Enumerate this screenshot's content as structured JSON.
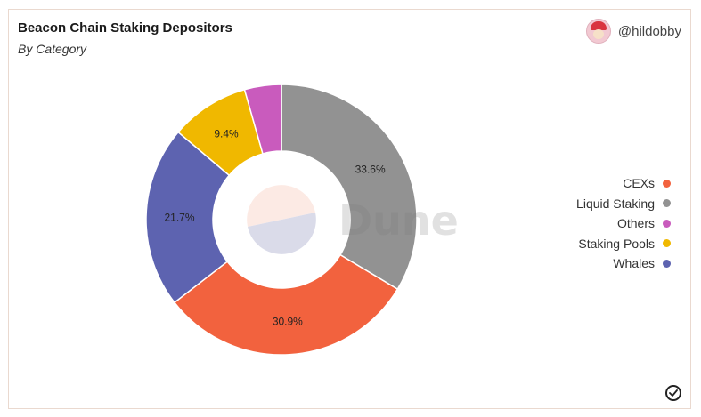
{
  "header": {
    "title": "Beacon Chain Staking Depositors",
    "subtitle": "By Category",
    "author": "@hildobby"
  },
  "watermark": {
    "text": "Dune"
  },
  "colors": {
    "CEXs": "#f2623e",
    "Liquid Staking": "#929292",
    "Others": "#c95bbd",
    "Staking Pools": "#f0b800",
    "Whales": "#5d63b0"
  },
  "chart_data": {
    "type": "pie",
    "donut": true,
    "legend_position": "right",
    "series": [
      {
        "name": "Liquid Staking",
        "value": 33.6,
        "label": "33.6%"
      },
      {
        "name": "CEXs",
        "value": 30.9,
        "label": "30.9%"
      },
      {
        "name": "Whales",
        "value": 21.7,
        "label": "21.7%"
      },
      {
        "name": "Staking Pools",
        "value": 9.4,
        "label": "9.4%"
      },
      {
        "name": "Others",
        "value": 4.4,
        "label": ""
      }
    ],
    "legend": [
      "CEXs",
      "Liquid Staking",
      "Others",
      "Staking Pools",
      "Whales"
    ]
  },
  "icons": {
    "status": "check-circle-icon"
  }
}
